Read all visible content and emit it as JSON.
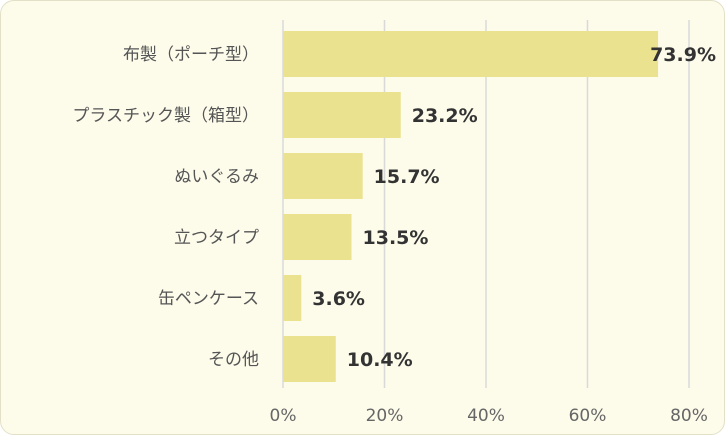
{
  "chart_data": {
    "type": "bar",
    "orientation": "horizontal",
    "categories": [
      "布製（ポーチ型）",
      "プラスチック製（箱型）",
      "ぬいぐるみ",
      "立つタイプ",
      "缶ペンケース",
      "その他"
    ],
    "values": [
      73.9,
      23.2,
      15.7,
      13.5,
      3.6,
      10.4
    ],
    "data_labels": [
      "73.9%",
      "23.2%",
      "15.7%",
      "13.5%",
      "3.6%",
      "10.4%"
    ],
    "x_ticks": [
      "0%",
      "20%",
      "40%",
      "60%",
      "80%"
    ],
    "xlim": [
      0,
      80
    ],
    "grid": true,
    "legend": "none",
    "colors": {
      "bar": "#ebe290",
      "background": "#fdfbea",
      "grid": "#d9d9d9"
    }
  }
}
